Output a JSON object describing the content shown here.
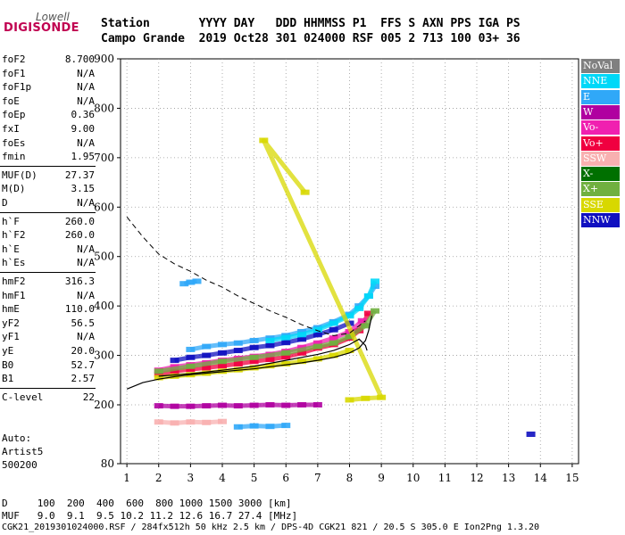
{
  "logo": {
    "line1": "Lowell",
    "line2": "DIGISONDE"
  },
  "header": {
    "line1": "Station       YYYY DAY   DDD HHMMSS P1  FFS S AXN PPS IGA PS",
    "line2": "Campo Grande  2019 Oct28 301 024000 RSF 005 2 713 100 03+ 36"
  },
  "params": {
    "group1": [
      {
        "label": "foF2",
        "value": "8.700"
      },
      {
        "label": "foF1",
        "value": "N/A"
      },
      {
        "label": "foF1p",
        "value": "N/A"
      },
      {
        "label": "foE",
        "value": "N/A"
      },
      {
        "label": "foEp",
        "value": "0.36"
      },
      {
        "label": "fxI",
        "value": "9.00"
      },
      {
        "label": "foEs",
        "value": "N/A"
      },
      {
        "label": "fmin",
        "value": "1.95"
      }
    ],
    "group2": [
      {
        "label": "MUF(D)",
        "value": "27.37"
      },
      {
        "label": "M(D)",
        "value": "3.15"
      },
      {
        "label": "D",
        "value": "N/A"
      }
    ],
    "group3": [
      {
        "label": "h`F",
        "value": "260.0"
      },
      {
        "label": "h`F2",
        "value": "260.0"
      },
      {
        "label": "h`E",
        "value": "N/A"
      },
      {
        "label": "h`Es",
        "value": "N/A"
      }
    ],
    "group4": [
      {
        "label": "hmF2",
        "value": "316.3"
      },
      {
        "label": "hmF1",
        "value": "N/A"
      },
      {
        "label": "hmE",
        "value": "110.0"
      },
      {
        "label": "yF2",
        "value": "56.5"
      },
      {
        "label": "yF1",
        "value": "N/A"
      },
      {
        "label": "yE",
        "value": "20.0"
      },
      {
        "label": "B0",
        "value": "52.7"
      },
      {
        "label": "B1",
        "value": "2.57"
      }
    ],
    "group5": [
      {
        "label": "C-level",
        "value": "22"
      }
    ]
  },
  "autoscaling": {
    "line1": "Auto:",
    "line2": "Artist5",
    "line3": "500200"
  },
  "legend": [
    {
      "label": "NoVal",
      "color": "#808080"
    },
    {
      "label": "NNE",
      "color": "#00d8f8"
    },
    {
      "label": "E",
      "color": "#30a8f8"
    },
    {
      "label": "W",
      "color": "#b000a0"
    },
    {
      "label": "Vo-",
      "color": "#f020b0"
    },
    {
      "label": "Vo+",
      "color": "#f00040"
    },
    {
      "label": "SSW",
      "color": "#f8b0b0"
    },
    {
      "label": "X-",
      "color": "#007000"
    },
    {
      "label": "X+",
      "color": "#70b040"
    },
    {
      "label": "SSE",
      "color": "#d8d800"
    },
    {
      "label": "NNW",
      "color": "#1010c0"
    }
  ],
  "footer": {
    "line1": "D     100  200  400  600  800 1000 1500 3000 [km]",
    "line2": "MUF   9.0  9.1  9.5 10.2 11.2 12.6 16.7 27.4 [MHz]",
    "line3": "CGK21_2019301024000.RSF / 284fx512h 50 kHz 2.5 km / DPS-4D CGK21 821 / 20.5 S 305.0 E Ion2Png 1.3.20"
  },
  "chart_data": {
    "type": "scatter",
    "xlim": [
      0.8,
      15.2
    ],
    "ylim": [
      80,
      900
    ],
    "xticks": [
      1,
      2,
      3,
      4,
      5,
      6,
      7,
      8,
      9,
      10,
      11,
      12,
      13,
      14,
      15
    ],
    "yticks": [
      80,
      200,
      300,
      400,
      500,
      600,
      700,
      800,
      900
    ],
    "grid": "dotted",
    "legend_position": "right",
    "curves": {
      "upper_dashed": {
        "x": [
          1,
          1.5,
          2,
          2.5,
          3,
          3.5,
          4,
          4.5,
          5,
          5.5,
          6,
          6.5,
          7,
          7.5,
          8,
          8.5
        ],
        "y": [
          580,
          540,
          505,
          485,
          470,
          452,
          438,
          420,
          405,
          390,
          377,
          362,
          350,
          340,
          345,
          370
        ]
      },
      "profile_solid": {
        "x": [
          1,
          1.5,
          2,
          2.5,
          3,
          3.5,
          4,
          4.5,
          5,
          5.5,
          6,
          6.5,
          7,
          7.5,
          8,
          8.3,
          8.5,
          8.6,
          8.7
        ],
        "y": [
          232,
          245,
          252,
          257,
          261,
          264,
          267,
          270,
          273,
          277,
          281,
          285,
          290,
          296,
          305,
          315,
          330,
          350,
          380
        ]
      },
      "trace_solid": {
        "x": [
          2,
          3,
          4,
          5,
          6,
          7,
          7.5,
          8,
          8.3,
          8.5,
          8.55
        ],
        "y": [
          258,
          263,
          270,
          278,
          290,
          302,
          310,
          322,
          333,
          320,
          310
        ]
      }
    },
    "traces": [
      {
        "name": "Vo+",
        "color": "#f00040",
        "x": [
          2,
          2.5,
          3,
          3.5,
          4,
          4.5,
          5,
          5.5,
          6,
          6.5,
          7,
          7.5,
          8,
          8.3,
          8.6
        ],
        "y": [
          262,
          268,
          272,
          275,
          279,
          283,
          288,
          292,
          297,
          305,
          315,
          322,
          335,
          350,
          385
        ]
      },
      {
        "name": "Vo-",
        "color": "#f020b0",
        "x": [
          2,
          2.5,
          3,
          3.5,
          4,
          4.5,
          5,
          5.5,
          6,
          6.5,
          7,
          7.5,
          8,
          8.4
        ],
        "y": [
          270,
          277,
          281,
          285,
          290,
          294,
          298,
          302,
          308,
          316,
          325,
          335,
          348,
          370
        ]
      },
      {
        "name": "X+",
        "color": "#70b040",
        "x": [
          2,
          3,
          4,
          5,
          6,
          7,
          7.5,
          8,
          8.5,
          8.8
        ],
        "y": [
          268,
          278,
          288,
          296,
          305,
          318,
          325,
          338,
          360,
          390
        ]
      },
      {
        "name": "SSE",
        "color": "#d8d800",
        "x": [
          2,
          2.5,
          3,
          3.5,
          4,
          4.5,
          5,
          5.5,
          6,
          6.5,
          7,
          7.5,
          8
        ],
        "y": [
          255,
          258,
          261,
          264,
          268,
          271,
          275,
          279,
          283,
          288,
          293,
          300,
          310
        ]
      },
      {
        "name": "NNW",
        "color": "#1010c0",
        "x": [
          2.5,
          3,
          3.5,
          4,
          4.5,
          5,
          5.5,
          6,
          6.5,
          7,
          7.5,
          8
        ],
        "y": [
          290,
          296,
          300,
          305,
          310,
          316,
          320,
          326,
          333,
          342,
          352,
          365
        ]
      },
      {
        "name": "E",
        "color": "#30a8f8",
        "x": [
          3,
          3.5,
          4,
          4.5,
          5,
          5.5,
          6,
          6.5,
          7,
          7.5,
          8,
          8.3,
          8.6,
          8.8
        ],
        "y": [
          312,
          318,
          322,
          325,
          330,
          335,
          340,
          348,
          356,
          368,
          383,
          400,
          420,
          440
        ]
      },
      {
        "name": "NNE",
        "color": "#00d8f8",
        "x": [
          5.5,
          6,
          6.5,
          7,
          7.5,
          8,
          8.3,
          8.6,
          8.8
        ],
        "y": [
          330,
          336,
          342,
          352,
          365,
          380,
          395,
          420,
          450
        ]
      },
      {
        "name": "W",
        "color": "#b000a0",
        "x": [
          2,
          2.5,
          3,
          3.5,
          4,
          4.5,
          5,
          5.5,
          6,
          6.5,
          7
        ],
        "y": [
          198,
          197,
          197,
          198,
          199,
          198,
          199,
          200,
          199,
          200,
          200
        ]
      },
      {
        "name": "SSW",
        "color": "#f8b0b0",
        "x": [
          2,
          2.5,
          3,
          3.5,
          4
        ],
        "y": [
          165,
          163,
          165,
          164,
          166
        ]
      },
      {
        "name": "E",
        "color": "#30a8f8",
        "x": [
          4.5,
          5,
          5.5,
          6
        ],
        "y": [
          155,
          157,
          156,
          158
        ]
      },
      {
        "name": "E",
        "color": "#30a8f8",
        "x": [
          2.8,
          3,
          3.2
        ],
        "y": [
          445,
          448,
          450
        ]
      },
      {
        "name": "SSE",
        "color": "#d8d800",
        "x": [
          8,
          8.5,
          9,
          5.3,
          6.6
        ],
        "y": [
          210,
          213,
          215,
          735,
          630
        ]
      },
      {
        "name": "NNW",
        "color": "#1010c0",
        "x": [
          13.7
        ],
        "y": [
          140
        ]
      }
    ]
  }
}
